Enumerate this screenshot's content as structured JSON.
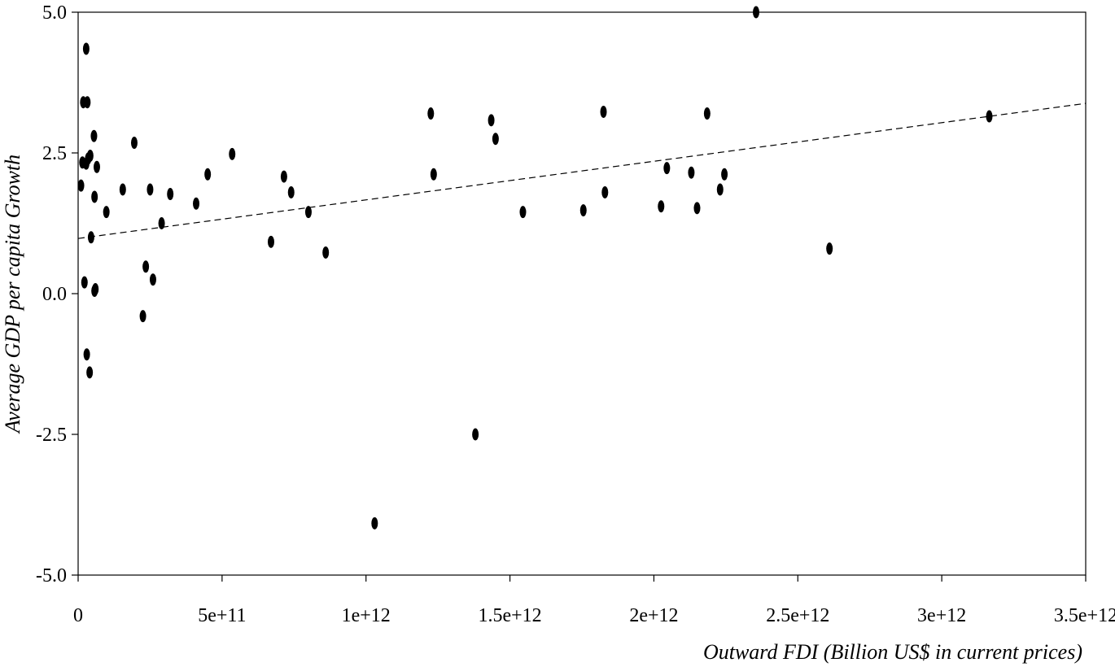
{
  "chart_data": {
    "type": "scatter",
    "title": "",
    "xlabel": "Outward FDI (Billion US$ in current prices)",
    "ylabel": "Average GDP per capita Growth",
    "xlim": [
      0,
      3500000000000
    ],
    "ylim": [
      -5,
      5
    ],
    "x_ticks": [
      0,
      500000000000,
      1000000000000,
      1500000000000,
      2000000000000,
      2500000000000,
      3000000000000,
      3500000000000
    ],
    "x_tick_labels": [
      "0",
      "5e+11",
      "1e+12",
      "1.5e+12",
      "2e+12",
      "2.5e+12",
      "3e+12",
      "3.5e+12"
    ],
    "y_ticks": [
      5,
      2.5,
      0,
      -2.5,
      -5
    ],
    "y_tick_labels": [
      "5.0",
      "2.5",
      "0.0",
      "-2.5",
      "-5.0"
    ],
    "grid": false,
    "legend": "none",
    "series": [
      {
        "points": [
          [
            10000000000,
            1.92
          ],
          [
            15000000000,
            2.33
          ],
          [
            18000000000,
            3.4
          ],
          [
            22000000000,
            0.2
          ],
          [
            28000000000,
            2.31
          ],
          [
            28000000000,
            4.35
          ],
          [
            30000000000,
            -1.08
          ],
          [
            32000000000,
            3.4
          ],
          [
            35000000000,
            2.4
          ],
          [
            40000000000,
            -1.4
          ],
          [
            42000000000,
            2.45
          ],
          [
            45000000000,
            1.0
          ],
          [
            55000000000,
            2.8
          ],
          [
            57000000000,
            0.05
          ],
          [
            57000000000,
            1.72
          ],
          [
            60000000000,
            0.08
          ],
          [
            65000000000,
            2.25
          ],
          [
            98000000000,
            1.45
          ],
          [
            155000000000,
            1.85
          ],
          [
            195000000000,
            2.68
          ],
          [
            225000000000,
            -0.4
          ],
          [
            235000000000,
            0.48
          ],
          [
            250000000000,
            1.85
          ],
          [
            260000000000,
            0.25
          ],
          [
            290000000000,
            1.25
          ],
          [
            320000000000,
            1.77
          ],
          [
            410000000000,
            1.6
          ],
          [
            450000000000,
            2.12
          ],
          [
            535000000000,
            2.48
          ],
          [
            670000000000,
            0.92
          ],
          [
            715000000000,
            2.08
          ],
          [
            740000000000,
            1.8
          ],
          [
            800000000000,
            1.45
          ],
          [
            860000000000,
            0.73
          ],
          [
            1030000000000,
            -4.08
          ],
          [
            1225000000000,
            3.2
          ],
          [
            1235000000000,
            2.12
          ],
          [
            1380000000000,
            -2.5
          ],
          [
            1435000000000,
            3.08
          ],
          [
            1450000000000,
            2.75
          ],
          [
            1545000000000,
            1.45
          ],
          [
            1755000000000,
            1.48
          ],
          [
            1825000000000,
            3.23
          ],
          [
            1830000000000,
            1.8
          ],
          [
            2025000000000,
            1.55
          ],
          [
            2045000000000,
            2.23
          ],
          [
            2130000000000,
            2.15
          ],
          [
            2150000000000,
            1.52
          ],
          [
            2185000000000,
            3.2
          ],
          [
            2230000000000,
            1.85
          ],
          [
            2245000000000,
            2.12
          ],
          [
            2355000000000,
            5.0
          ],
          [
            2610000000000,
            0.8
          ],
          [
            3165000000000,
            3.15
          ]
        ]
      }
    ],
    "fit_line": {
      "x": [
        0,
        3500000000000
      ],
      "y": [
        0.98,
        3.38
      ],
      "style": "dashed"
    }
  }
}
